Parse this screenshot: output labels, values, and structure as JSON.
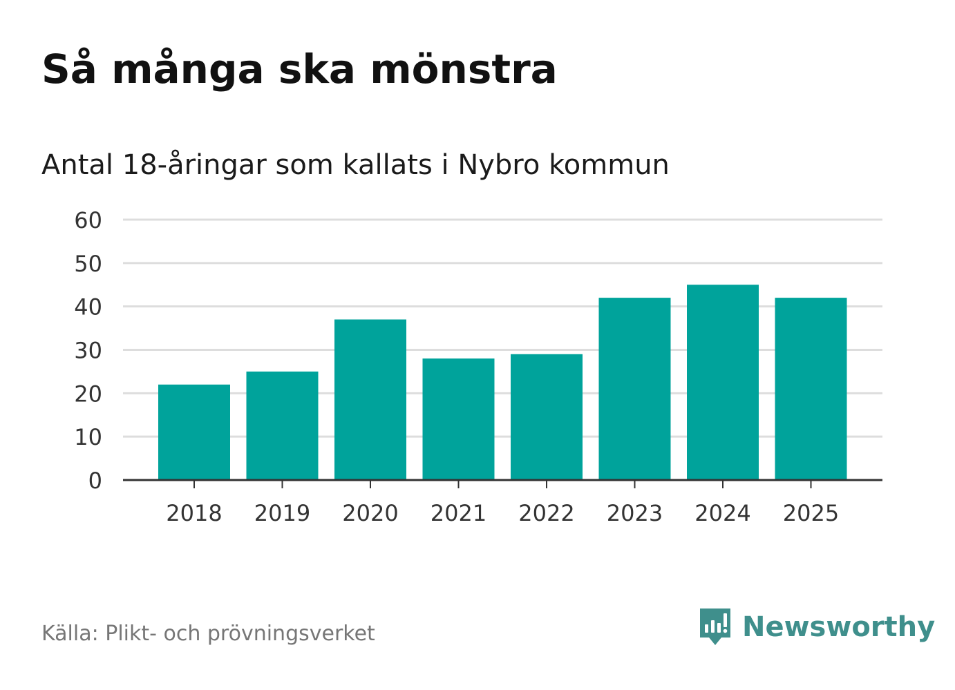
{
  "header": {
    "title": "Så många ska mönstra",
    "subtitle": "Antal 18-åringar som kallats i Nybro kommun"
  },
  "footer": {
    "source": "Källa: Plikt- och prövningsverket",
    "brand_name": "Newsworthy",
    "brand_icon": "newsworthy-logo-icon"
  },
  "colors": {
    "bar": "#00a39b",
    "grid": "#dddddd",
    "axis": "#333333",
    "brand": "#3f8f8c"
  },
  "chart_data": {
    "type": "bar",
    "title": "Så många ska mönstra",
    "subtitle": "Antal 18-åringar som kallats i Nybro kommun",
    "xlabel": "",
    "ylabel": "",
    "categories": [
      "2018",
      "2019",
      "2020",
      "2021",
      "2022",
      "2023",
      "2024",
      "2025"
    ],
    "values": [
      22,
      25,
      37,
      28,
      29,
      42,
      45,
      42
    ],
    "ylim": [
      0,
      60
    ],
    "yticks": [
      0,
      10,
      20,
      30,
      40,
      50,
      60
    ],
    "grid": true,
    "legend": "none"
  }
}
